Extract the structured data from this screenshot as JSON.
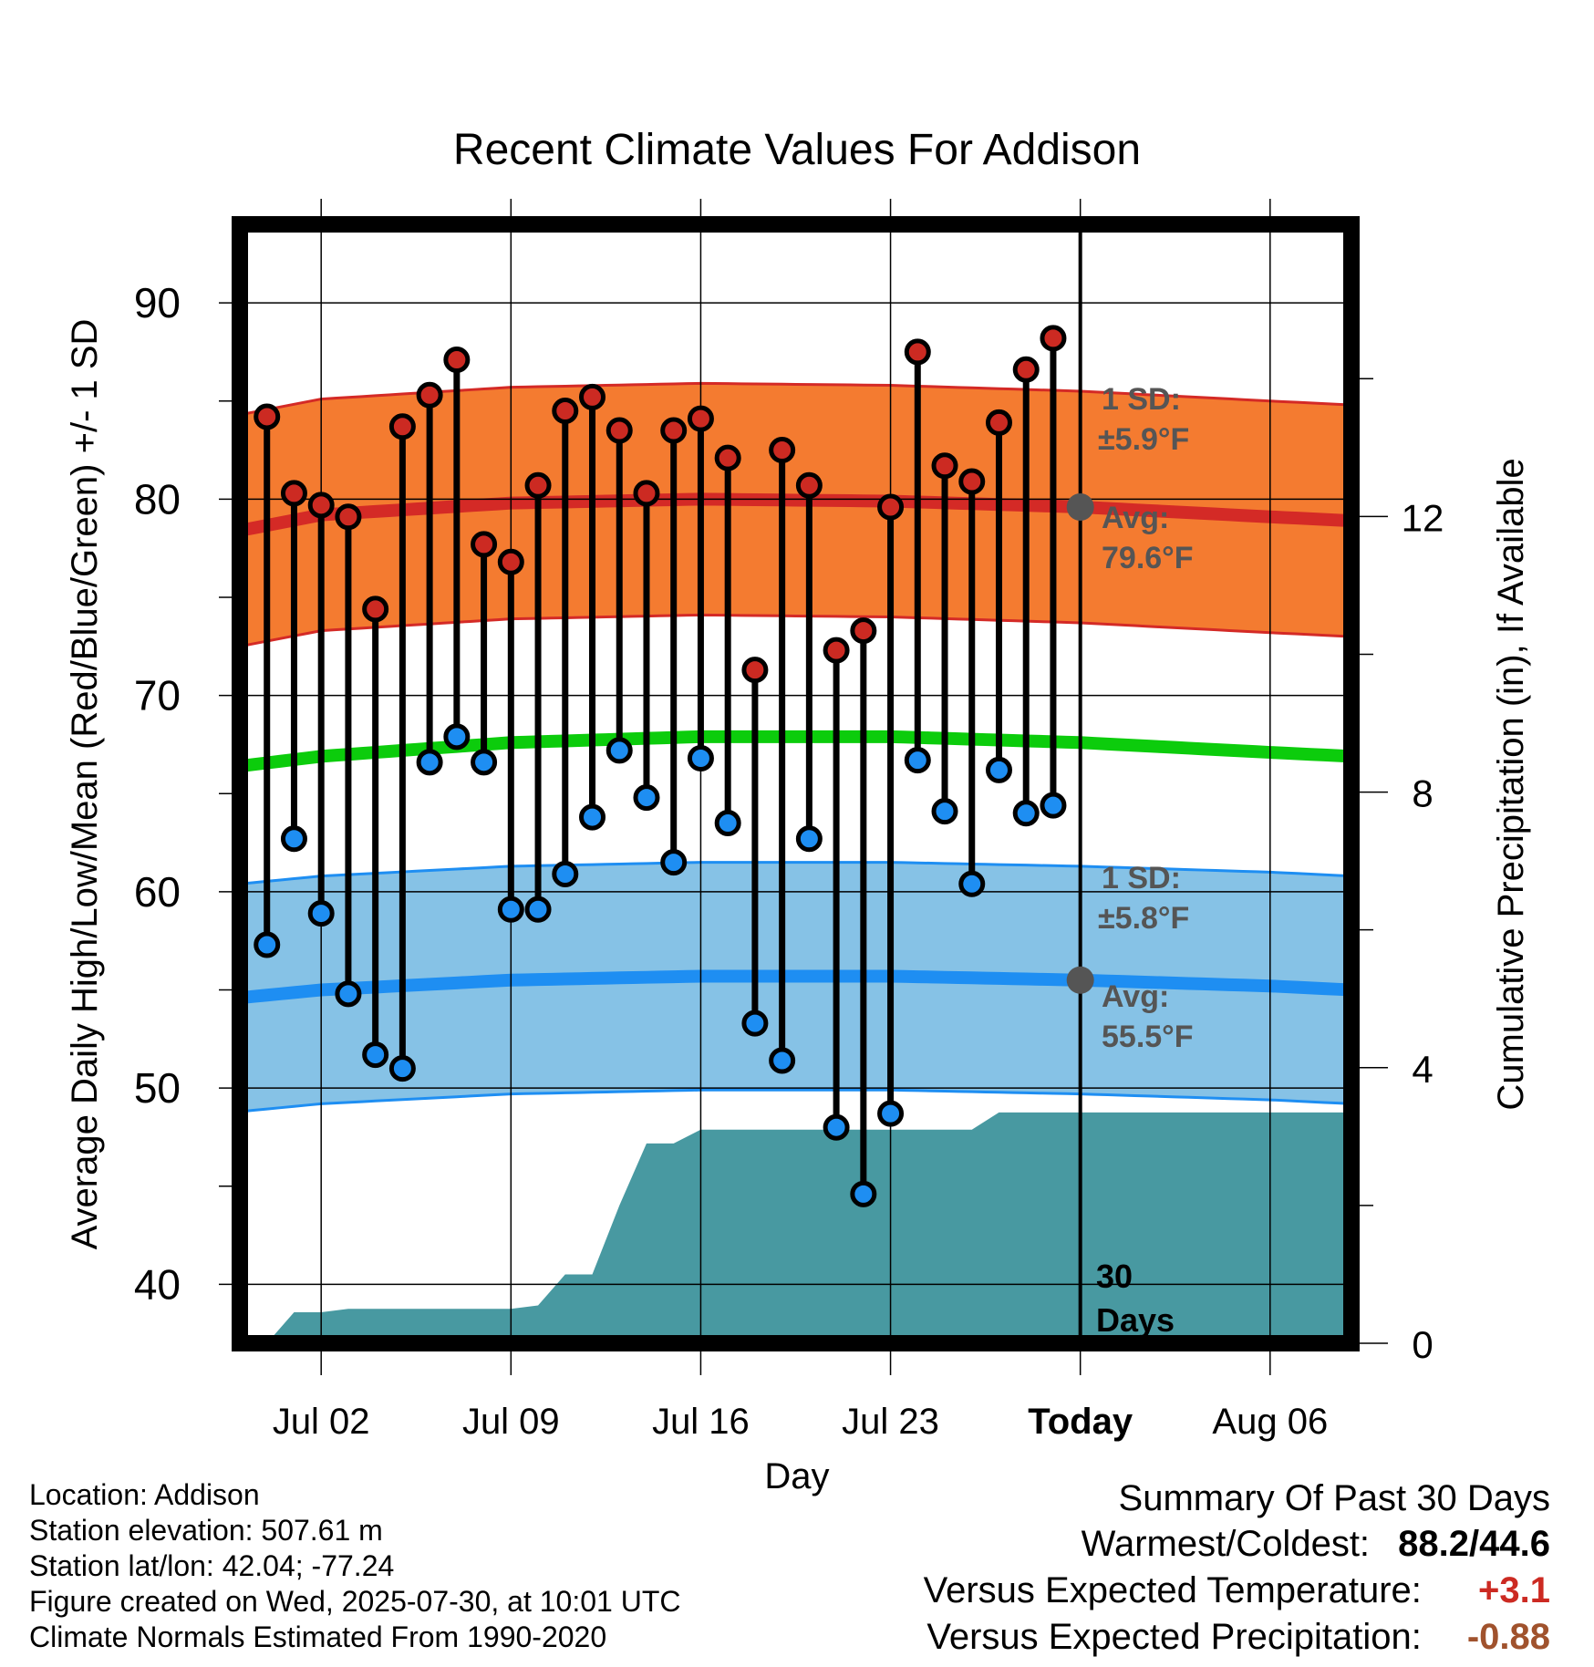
{
  "chart_data": {
    "type": "line",
    "title": "Recent Climate Values For Addison",
    "xlabel": "Day",
    "ylabel_left": "Average Daily High/Low/Mean (Red/Blue/Green) +/- 1 SD",
    "ylabel_right": "Cumulative Precipitation (in), If Available",
    "x_ticks": [
      "Jul 02",
      "Jul 09",
      "Jul 16",
      "Jul 23",
      "Today",
      "Aug 06"
    ],
    "x_range": [
      "Jun 29",
      "Aug 09"
    ],
    "y_left_ticks": [
      40,
      50,
      60,
      70,
      80,
      90
    ],
    "y_left_range": [
      37,
      94
    ],
    "y_right_ticks": [
      0,
      4,
      8,
      12
    ],
    "today": "Jul 30",
    "days": [
      "Jun 30",
      "Jul 01",
      "Jul 02",
      "Jul 03",
      "Jul 04",
      "Jul 05",
      "Jul 06",
      "Jul 07",
      "Jul 08",
      "Jul 09",
      "Jul 10",
      "Jul 11",
      "Jul 12",
      "Jul 13",
      "Jul 14",
      "Jul 15",
      "Jul 16",
      "Jul 17",
      "Jul 18",
      "Jul 19",
      "Jul 20",
      "Jul 21",
      "Jul 22",
      "Jul 23",
      "Jul 24",
      "Jul 25",
      "Jul 26",
      "Jul 27",
      "Jul 28",
      "Jul 29"
    ],
    "highs": [
      84.2,
      80.3,
      79.7,
      79.1,
      74.4,
      83.7,
      85.3,
      87.1,
      77.7,
      76.8,
      80.7,
      84.5,
      85.2,
      83.5,
      80.3,
      83.5,
      84.1,
      82.1,
      71.3,
      82.5,
      80.7,
      72.3,
      73.3,
      79.6,
      87.5,
      81.7,
      80.9,
      83.9,
      86.6,
      88.2
    ],
    "lows": [
      57.3,
      62.7,
      58.9,
      54.8,
      51.7,
      51.0,
      66.6,
      67.9,
      66.6,
      59.1,
      59.1,
      60.9,
      63.8,
      67.2,
      64.8,
      61.5,
      66.8,
      63.5,
      53.3,
      51.4,
      62.7,
      48.0,
      44.6,
      48.7,
      66.7,
      64.1,
      60.4,
      66.2,
      64.0,
      64.4
    ],
    "normals": {
      "days": [
        "Jun 29",
        "Jul 02",
        "Jul 09",
        "Jul 16",
        "Jul 23",
        "Jul 30",
        "Aug 06",
        "Aug 09"
      ],
      "high_mean": [
        78.4,
        79.2,
        79.8,
        80.0,
        79.9,
        79.6,
        79.1,
        78.9
      ],
      "high_sd": 5.9,
      "mean": [
        66.4,
        66.9,
        67.6,
        67.9,
        67.9,
        67.6,
        67.1,
        66.9
      ],
      "low_mean": [
        54.6,
        55.0,
        55.5,
        55.7,
        55.7,
        55.5,
        55.2,
        55.0
      ],
      "low_sd": 5.8
    },
    "precip_days": [
      "Jun 29",
      "Jun 30",
      "Jul 01",
      "Jul 02",
      "Jul 03",
      "Jul 04",
      "Jul 05",
      "Jul 06",
      "Jul 07",
      "Jul 08",
      "Jul 09",
      "Jul 10",
      "Jul 11",
      "Jul 12",
      "Jul 13",
      "Jul 14",
      "Jul 15",
      "Jul 16",
      "Jul 17",
      "Jul 18",
      "Jul 19",
      "Jul 20",
      "Jul 21",
      "Jul 22",
      "Jul 23",
      "Jul 24",
      "Jul 25",
      "Jul 26",
      "Jul 27",
      "Jul 28",
      "Jul 29",
      "Jul 30",
      "Aug 09"
    ],
    "precip_cumulative": [
      0,
      0.0,
      0.45,
      0.45,
      0.5,
      0.5,
      0.5,
      0.5,
      0.5,
      0.5,
      0.5,
      0.55,
      1.0,
      1.0,
      2.0,
      2.9,
      2.9,
      3.1,
      3.1,
      3.1,
      3.1,
      3.1,
      3.1,
      3.1,
      3.1,
      3.1,
      3.1,
      3.1,
      3.35,
      3.35,
      3.35,
      3.35,
      3.35
    ],
    "annotations": {
      "high_sd_label": "1 SD:",
      "high_sd_value": "±5.9°F",
      "high_avg_label": "Avg:",
      "high_avg_value": "79.6°F",
      "low_sd_label": "1 SD:",
      "low_sd_value": "±5.8°F",
      "low_avg_label": "Avg:",
      "low_avg_value": "55.5°F",
      "days_number": "30",
      "days_word": "Days"
    },
    "colors": {
      "high_band": "#f47b30",
      "high_line": "#d42a26",
      "low_band": "#86c2e6",
      "low_line": "#1e8ef2",
      "mean_line": "#0ccc0c",
      "precip": "#4899a1",
      "high_dot": "#cc2a22",
      "low_dot": "#1e8ef2",
      "annotation": "#555555"
    }
  },
  "info": {
    "location": "Location: Addison",
    "elevation": "Station elevation: 507.61 m",
    "latlon": "Station lat/lon: 42.04; -77.24",
    "created": "Figure created on Wed, 2025-07-30, at 10:01 UTC",
    "normals": "Climate Normals Estimated From 1990-2020"
  },
  "summary": {
    "title": "Summary Of Past 30 Days",
    "warm_cold_label": "Warmest/Coldest:",
    "warm_cold_value": "88.2/44.6",
    "temp_label": "Versus Expected Temperature:",
    "temp_value": "+3.1",
    "temp_color": "#cc2a22",
    "precip_label": "Versus Expected Precipitation:",
    "precip_value": "-0.88",
    "precip_color": "#a0522d"
  }
}
